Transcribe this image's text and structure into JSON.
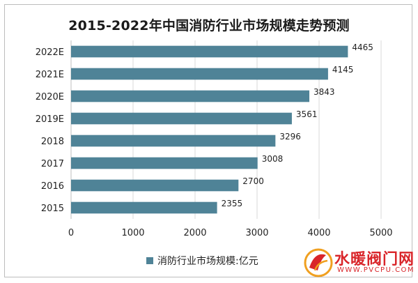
{
  "chart_data": {
    "type": "bar",
    "orientation": "horizontal",
    "title": "2015-2022年中国消防行业市场规模走势预测",
    "categories": [
      "2022E",
      "2021E",
      "2020E",
      "2019E",
      "2018",
      "2017",
      "2016",
      "2015"
    ],
    "series": [
      {
        "name": "消防行业市场规模:亿元",
        "values": [
          4465,
          4145,
          3843,
          3561,
          3296,
          3008,
          2700,
          2355
        ]
      }
    ],
    "xlim": [
      0,
      5000
    ],
    "xticks": [
      0,
      1000,
      2000,
      3000,
      4000,
      5000
    ],
    "grid": "vertical",
    "legend_position": "bottom",
    "bar_color": "#4f8397"
  },
  "watermark": {
    "text": "水暖阀门网",
    "sub": "WWW.PVCPU.COM",
    "color": "#d9252a"
  }
}
